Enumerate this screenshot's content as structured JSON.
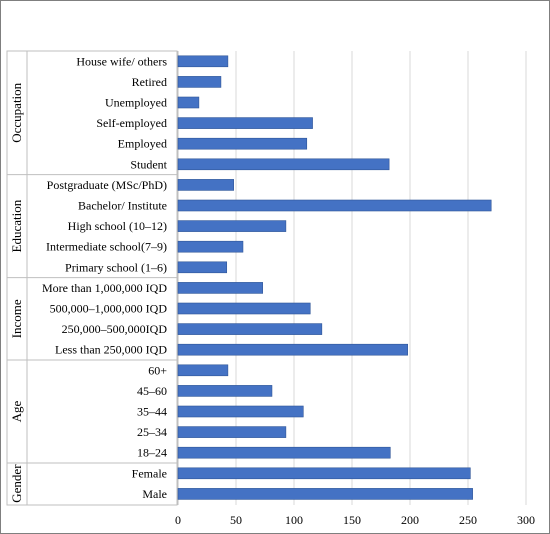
{
  "colors": {
    "bar": "#4472C4",
    "bar_edge": "#2F5597",
    "grid": "#D9D9D9",
    "border": "#BFBFBF",
    "outer_border": "#7F7F7F"
  },
  "chart_data": {
    "type": "bar",
    "orientation": "horizontal",
    "title": "",
    "xlabel": "",
    "ylabel": "",
    "xlim": [
      0,
      300
    ],
    "x_ticks": [
      "0",
      "50",
      "100",
      "150",
      "200",
      "250",
      "300"
    ],
    "grid": "vertical",
    "legend": "none",
    "groups": [
      {
        "name": "Occupation",
        "categories": [
          "House wife/ others",
          "Retired",
          "Unemployed",
          "Self-employed",
          "Employed",
          "Student"
        ],
        "values": [
          43,
          37,
          18,
          116,
          111,
          182
        ]
      },
      {
        "name": "Education",
        "categories": [
          "Postgraduate (MSc/PhD)",
          "Bachelor/ Institute",
          "High school (10–12)",
          "Intermediate school(7–9)",
          "Primary school (1–6)"
        ],
        "values": [
          48,
          270,
          93,
          56,
          42
        ]
      },
      {
        "name": "Income",
        "categories": [
          "More than 1,000,000 IQD",
          "500,000–1,000,000  IQD",
          "250,000–500,000IQD",
          "Less than 250,000 IQD"
        ],
        "values": [
          73,
          114,
          124,
          198
        ]
      },
      {
        "name": "Age",
        "categories": [
          "60+",
          "45–60",
          "35–44",
          "25–34",
          "18–24"
        ],
        "values": [
          43,
          81,
          108,
          93,
          183
        ]
      },
      {
        "name": "Gender",
        "categories": [
          "Female",
          "Male"
        ],
        "values": [
          252,
          254
        ]
      }
    ]
  }
}
